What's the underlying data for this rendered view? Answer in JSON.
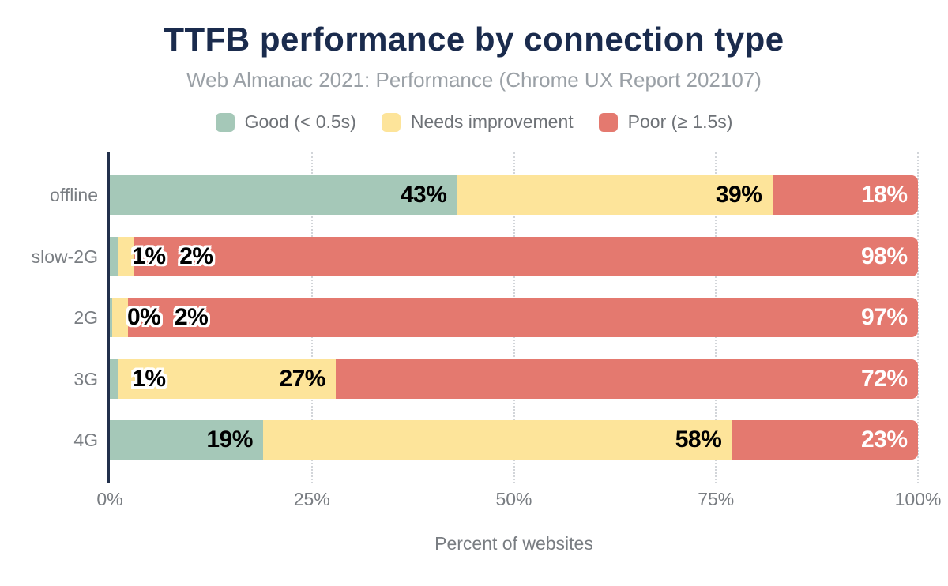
{
  "chart_data": {
    "type": "bar",
    "variant": "horizontal-stacked",
    "title": "TTFB performance by connection type",
    "subtitle": "Web Almanac 2021: Performance (Chrome UX Report 202107)",
    "categories": [
      "offline",
      "slow-2G",
      "2G",
      "3G",
      "4G"
    ],
    "series": [
      {
        "name": "Good (< 0.5s)",
        "color": "#a5c8b8",
        "values": [
          43,
          1,
          0,
          1,
          19
        ]
      },
      {
        "name": "Needs improvement",
        "color": "#fde49a",
        "values": [
          39,
          2,
          2,
          27,
          58
        ]
      },
      {
        "name": "Poor (≥ 1.5s)",
        "color": "#e4796f",
        "values": [
          18,
          98,
          97,
          72,
          23
        ]
      }
    ],
    "value_suffix": "%",
    "xlabel": "Percent of websites",
    "xticks": [
      {
        "value": 0,
        "label": "0%"
      },
      {
        "value": 25,
        "label": "25%"
      },
      {
        "value": 50,
        "label": "50%"
      },
      {
        "value": 75,
        "label": "75%"
      },
      {
        "value": 100,
        "label": "100%"
      }
    ],
    "xlim": [
      0,
      100
    ],
    "legend_position": "top",
    "grid": "vertical-dotted",
    "label_colors": {
      "on_good": "#000000",
      "on_needs_improvement": "#000000",
      "on_poor": "#ffffff"
    }
  },
  "colors": {
    "title": "#1a2b4d",
    "subtitle": "#9aa0a6",
    "axis_line": "#22304c",
    "axis_text": "#797d82",
    "gridline": "#d2d5d9",
    "background": "#ffffff"
  }
}
